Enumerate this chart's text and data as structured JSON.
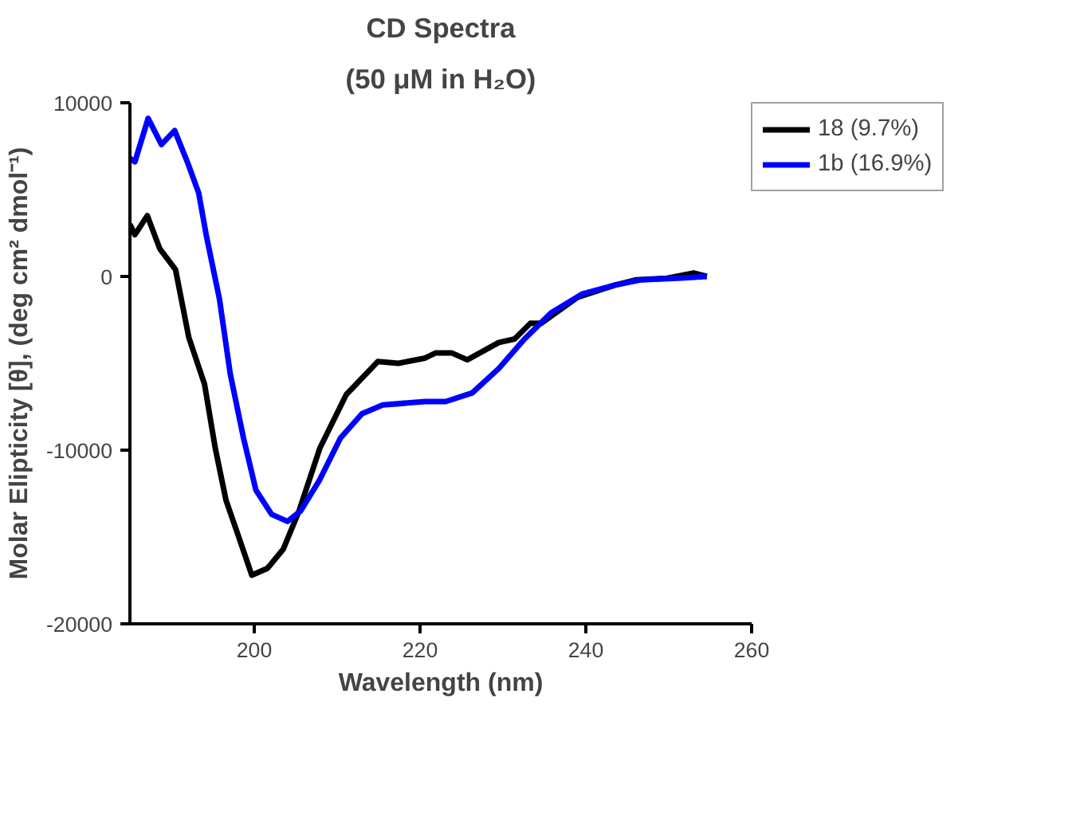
{
  "chart_data": {
    "type": "line",
    "title": "CD Spectra",
    "subtitle": "(50 μM in H₂O)",
    "xlabel": "Wavelength (nm)",
    "ylabel": "Molar Elipticity [θ], (deg cm² dmol⁻¹)",
    "xlim": [
      185,
      260
    ],
    "xticks": [
      200,
      220,
      240,
      260
    ],
    "ylim": [
      -20000,
      10000
    ],
    "yticks": [
      -20000,
      -10000,
      0,
      10000
    ],
    "grid": false,
    "legend": "right",
    "line_style": "solid",
    "marker": "none",
    "series": [
      {
        "name": "18 (9.7%)",
        "color": "#000000",
        "x": [
          185,
          185.6,
          187.1,
          188.6,
          190.5,
          192.1,
          194,
          195.3,
          196.6,
          198.2,
          199.7,
          201.6,
          203.5,
          205.4,
          207.9,
          211.1,
          214.9,
          217.4,
          220.6,
          221.9,
          223.8,
          225.7,
          229.5,
          231.4,
          233.3,
          234.6,
          239,
          243.5,
          246,
          249.8,
          253,
          254.6
        ],
        "values": [
          3000,
          2400,
          3500,
          1600,
          400,
          -3500,
          -6200,
          -9900,
          -12900,
          -15100,
          -17200,
          -16800,
          -15700,
          -13500,
          -9900,
          -6800,
          -4900,
          -5000,
          -4700,
          -4400,
          -4400,
          -4800,
          -3800,
          -3600,
          -2700,
          -2700,
          -1200,
          -500,
          -200,
          -100,
          200,
          0
        ]
      },
      {
        "name": "1b (16.9%)",
        "color": "#0000ff",
        "x": [
          185,
          185.6,
          187.2,
          188.8,
          190.4,
          192,
          193.3,
          194.2,
          195.8,
          197.1,
          198.7,
          200.2,
          202.1,
          204,
          205.6,
          207.9,
          210.4,
          213,
          215.5,
          220.6,
          223.1,
          226.3,
          229.5,
          232.6,
          235.8,
          239.6,
          243.5,
          246.6,
          251.1,
          254.6
        ],
        "values": [
          6800,
          6600,
          9100,
          7600,
          8400,
          6500,
          4800,
          2400,
          -1300,
          -5600,
          -9300,
          -12300,
          -13700,
          -14100,
          -13500,
          -11700,
          -9300,
          -7900,
          -7400,
          -7200,
          -7200,
          -6700,
          -5300,
          -3600,
          -2100,
          -1000,
          -500,
          -200,
          -100,
          0
        ]
      }
    ]
  }
}
